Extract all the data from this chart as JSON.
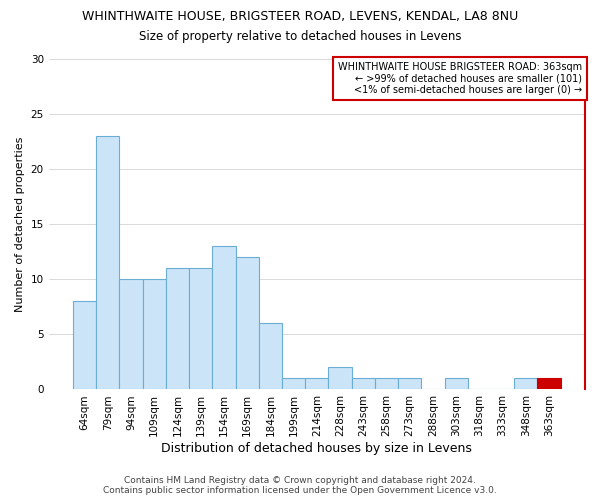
{
  "title_line1": "WHINTHWAITE HOUSE, BRIGSTEER ROAD, LEVENS, KENDAL, LA8 8NU",
  "title_line2": "Size of property relative to detached houses in Levens",
  "xlabel": "Distribution of detached houses by size in Levens",
  "ylabel": "Number of detached properties",
  "footer_line1": "Contains HM Land Registry data © Crown copyright and database right 2024.",
  "footer_line2": "Contains public sector information licensed under the Open Government Licence v3.0.",
  "categories": [
    "64sqm",
    "79sqm",
    "94sqm",
    "109sqm",
    "124sqm",
    "139sqm",
    "154sqm",
    "169sqm",
    "184sqm",
    "199sqm",
    "214sqm",
    "228sqm",
    "243sqm",
    "258sqm",
    "273sqm",
    "288sqm",
    "303sqm",
    "318sqm",
    "333sqm",
    "348sqm",
    "363sqm"
  ],
  "values": [
    8,
    23,
    10,
    10,
    11,
    11,
    13,
    12,
    6,
    1,
    1,
    2,
    1,
    1,
    1,
    0,
    1,
    0,
    0,
    1,
    1
  ],
  "bar_color_normal": "#cce4f7",
  "bar_color_highlight": "#cc0000",
  "bar_edgecolor_normal": "#6aaed6",
  "bar_edgecolor_highlight": "#cc0000",
  "highlight_index": 20,
  "ylim": [
    0,
    30
  ],
  "yticks": [
    0,
    5,
    10,
    15,
    20,
    25,
    30
  ],
  "annotation_title": "WHINTHWAITE HOUSE BRIGSTEER ROAD: 363sqm",
  "annotation_line2": "← >99% of detached houses are smaller (101)",
  "annotation_line3": "<1% of semi-detached houses are larger (0) →",
  "annotation_box_color": "#ffffff",
  "annotation_box_edgecolor": "#cc0000",
  "red_border_color": "#cc0000",
  "grid_color": "#cccccc",
  "background_color": "#ffffff",
  "title1_fontsize": 9,
  "title2_fontsize": 8.5,
  "xlabel_fontsize": 9,
  "ylabel_fontsize": 8,
  "tick_fontsize": 7.5,
  "annotation_fontsize": 7,
  "footer_fontsize": 6.5
}
